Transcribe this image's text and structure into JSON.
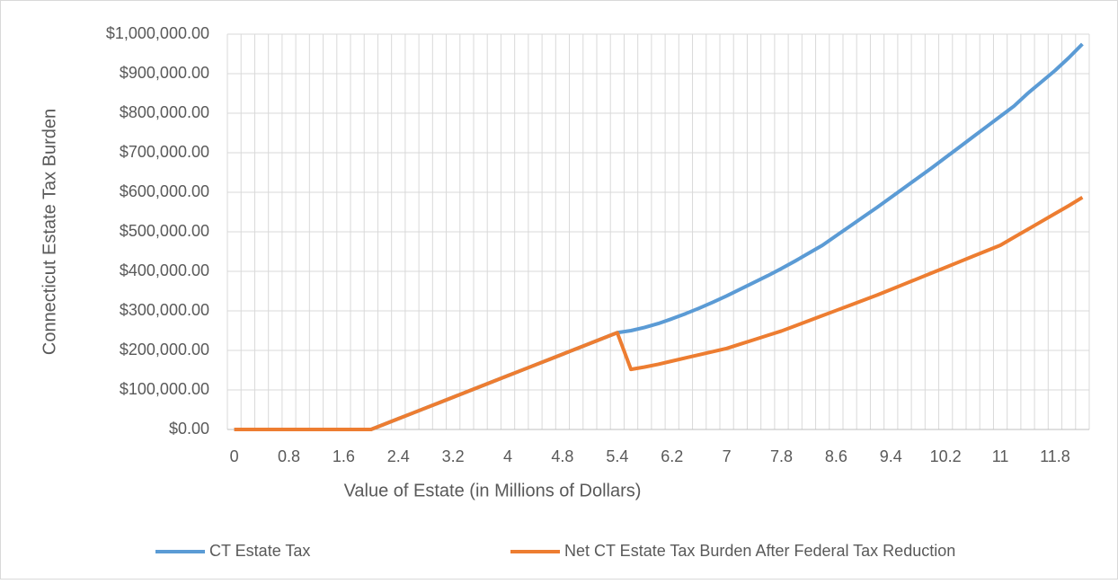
{
  "chart_data": {
    "type": "line",
    "x_label": "Value of Estate (in Millions of Dollars)",
    "y_label": "Connecticut Estate Tax Burden",
    "categories": [
      "0",
      null,
      null,
      null,
      "0.8",
      null,
      null,
      null,
      "1.6",
      null,
      null,
      null,
      "2.4",
      null,
      null,
      null,
      "3.2",
      null,
      null,
      null,
      "4",
      null,
      null,
      null,
      "4.8",
      null,
      null,
      null,
      "5.4",
      null,
      null,
      null,
      "6.2",
      null,
      null,
      null,
      "7",
      null,
      null,
      null,
      "7.8",
      null,
      null,
      null,
      "8.6",
      null,
      null,
      null,
      "9.4",
      null,
      null,
      null,
      "10.2",
      null,
      null,
      null,
      "11",
      null,
      null,
      null,
      "11.8",
      null,
      null
    ],
    "series": [
      {
        "name": "CT Estate Tax",
        "color": "#5b9bd5",
        "values": [
          0,
          0,
          0,
          0,
          0,
          0,
          0,
          0,
          0,
          0,
          0,
          13600,
          27200,
          40800,
          54400,
          68000,
          81600,
          95200,
          108800,
          122400,
          136000,
          149600,
          163200,
          176800,
          190400,
          204000,
          217600,
          231200,
          244800,
          250000,
          258000,
          268000,
          280000,
          293000,
          307000,
          322000,
          338000,
          355000,
          372000,
          389000,
          407000,
          426000,
          446000,
          466000,
          490000,
          514000,
          538000,
          562000,
          587000,
          612000,
          637000,
          662000,
          688000,
          714000,
          740000,
          766000,
          792000,
          818000,
          850000,
          879000,
          908000,
          940000,
          975000
        ]
      },
      {
        "name": "Net CT Estate Tax Burden After Federal Tax Reduction",
        "color": "#ed7d31",
        "values": [
          0,
          0,
          0,
          0,
          0,
          0,
          0,
          0,
          0,
          0,
          0,
          13600,
          27200,
          40800,
          54400,
          68000,
          81600,
          95200,
          108800,
          122400,
          136000,
          149600,
          163200,
          176800,
          190400,
          204000,
          217600,
          231200,
          244800,
          152000,
          158000,
          165000,
          173000,
          181000,
          189000,
          197000,
          205000,
          216000,
          227000,
          238000,
          249000,
          262000,
          275000,
          288000,
          301000,
          314000,
          327000,
          340000,
          354000,
          368000,
          382000,
          396000,
          410000,
          424000,
          438000,
          452000,
          466000,
          486000,
          506000,
          526000,
          546000,
          566000,
          587000
        ]
      }
    ],
    "ylim": [
      0,
      1000000
    ],
    "yticks": [
      {
        "value": 0,
        "label": "$0.00"
      },
      {
        "value": 100000,
        "label": "$100,000.00"
      },
      {
        "value": 200000,
        "label": "$200,000.00"
      },
      {
        "value": 300000,
        "label": "$300,000.00"
      },
      {
        "value": 400000,
        "label": "$400,000.00"
      },
      {
        "value": 500000,
        "label": "$500,000.00"
      },
      {
        "value": 600000,
        "label": "$600,000.00"
      },
      {
        "value": 700000,
        "label": "$700,000.00"
      },
      {
        "value": 800000,
        "label": "$800,000.00"
      },
      {
        "value": 900000,
        "label": "$900,000.00"
      },
      {
        "value": 1000000,
        "label": "$1,000,000.00"
      }
    ],
    "grid": true,
    "legend": "bottom"
  }
}
